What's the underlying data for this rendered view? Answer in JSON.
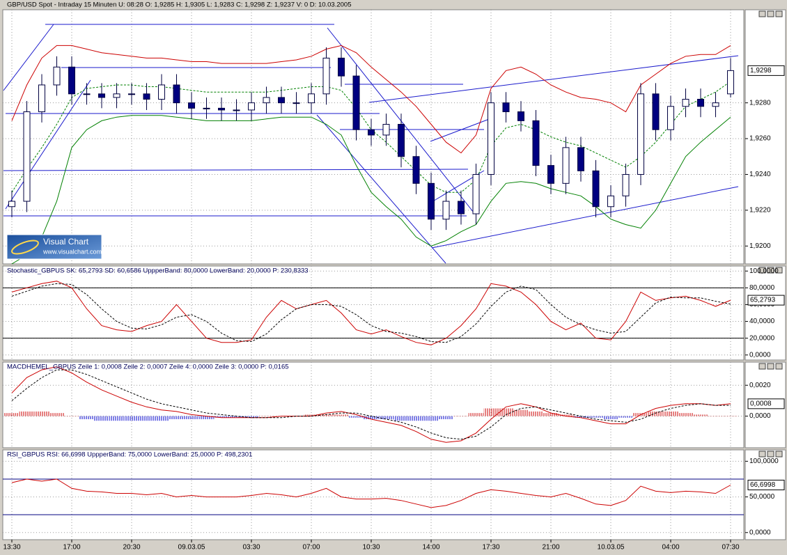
{
  "logo": {
    "title": "Visual Chart",
    "url": "www.visualchart.com"
  },
  "chart_data": [
    {
      "type": "candlestick",
      "title": "GBP/USD Spot - Intraday 15 Minuten  U: 08:28  O: 1,9285  H: 1,9305  L: 1,9283  C: 1,9298  Z: 1,9237  V: 0  D: 10.03.2005",
      "ylim": [
        1.919,
        1.9332
      ],
      "grid": true,
      "yticks": [
        {
          "value": 1.92,
          "label": "1,9200"
        },
        {
          "value": 1.922,
          "label": "1,9220"
        },
        {
          "value": 1.924,
          "label": "1,9240"
        },
        {
          "value": 1.926,
          "label": "1,9260"
        },
        {
          "value": 1.928,
          "label": "1,9280"
        }
      ],
      "current": {
        "value": 1.9298,
        "label": "1,9298"
      },
      "up_color": "#ffffff",
      "down_color": "#000080",
      "open": [
        1.9222,
        1.9225,
        1.9275,
        1.929,
        1.93,
        1.9285,
        1.9285,
        1.9283,
        1.9285,
        1.9285,
        1.9282,
        1.929,
        1.928,
        1.9277,
        1.9277,
        1.9276,
        1.9276,
        1.928,
        1.9283,
        1.928,
        1.928,
        1.9285,
        1.9305,
        1.9295,
        1.9265,
        1.9262,
        1.9268,
        1.925,
        1.9235,
        1.9215,
        1.9225,
        1.9218,
        1.924,
        1.928,
        1.9275,
        1.927,
        1.9245,
        1.9235,
        1.9255,
        1.9242,
        1.9222,
        1.9228,
        1.924,
        1.9285,
        1.9265,
        1.9278,
        1.9282,
        1.9278,
        1.9285
      ],
      "high": [
        1.9231,
        1.9281,
        1.9296,
        1.9306,
        1.9306,
        1.9291,
        1.9291,
        1.9291,
        1.9291,
        1.9291,
        1.9296,
        1.9296,
        1.9286,
        1.9283,
        1.9283,
        1.9282,
        1.9286,
        1.9289,
        1.9289,
        1.9286,
        1.9291,
        1.9311,
        1.9311,
        1.9301,
        1.9271,
        1.9274,
        1.9274,
        1.9256,
        1.9241,
        1.9231,
        1.9231,
        1.9246,
        1.9286,
        1.9286,
        1.9281,
        1.9276,
        1.9251,
        1.9261,
        1.9261,
        1.9248,
        1.9234,
        1.9246,
        1.9291,
        1.9291,
        1.9284,
        1.9288,
        1.9288,
        1.9286,
        1.9305
      ],
      "low": [
        1.9216,
        1.9219,
        1.9269,
        1.9284,
        1.9279,
        1.9279,
        1.9277,
        1.9277,
        1.9279,
        1.9276,
        1.9276,
        1.9274,
        1.9271,
        1.9271,
        1.927,
        1.927,
        1.927,
        1.9274,
        1.9274,
        1.9274,
        1.9274,
        1.9279,
        1.9289,
        1.9259,
        1.9256,
        1.9256,
        1.9244,
        1.9229,
        1.9209,
        1.9209,
        1.9212,
        1.9212,
        1.9234,
        1.9269,
        1.9264,
        1.9239,
        1.9229,
        1.9229,
        1.9236,
        1.9216,
        1.9216,
        1.9222,
        1.9234,
        1.9259,
        1.9259,
        1.9272,
        1.9272,
        1.9272,
        1.9283
      ],
      "close": [
        1.9225,
        1.9275,
        1.929,
        1.93,
        1.9285,
        1.9285,
        1.9283,
        1.9285,
        1.9285,
        1.9282,
        1.929,
        1.928,
        1.9277,
        1.9277,
        1.9276,
        1.9276,
        1.928,
        1.9283,
        1.928,
        1.928,
        1.9285,
        1.9305,
        1.9295,
        1.9265,
        1.9262,
        1.9268,
        1.925,
        1.9235,
        1.9215,
        1.9225,
        1.9218,
        1.924,
        1.928,
        1.9275,
        1.927,
        1.9245,
        1.9235,
        1.9255,
        1.9242,
        1.9222,
        1.9228,
        1.924,
        1.9285,
        1.9265,
        1.9278,
        1.9282,
        1.9278,
        1.928,
        1.9298
      ],
      "series": [
        {
          "color": "#cc0000",
          "values": [
            1.927,
            1.929,
            1.9305,
            1.9312,
            1.9312,
            1.931,
            1.9308,
            1.9307,
            1.9306,
            1.9305,
            1.9305,
            1.9304,
            1.9303,
            1.9303,
            1.9302,
            1.9302,
            1.9302,
            1.9302,
            1.9303,
            1.9304,
            1.9306,
            1.931,
            1.9312,
            1.9308,
            1.93,
            1.9293,
            1.9286,
            1.9278,
            1.9268,
            1.9258,
            1.9252,
            1.9262,
            1.9288,
            1.9298,
            1.93,
            1.9296,
            1.929,
            1.9286,
            1.9283,
            1.9282,
            1.928,
            1.9275,
            1.929,
            1.9296,
            1.9302,
            1.9306,
            1.9307,
            1.9307,
            1.9312
          ]
        },
        {
          "color": "#008000",
          "dash": true,
          "values": [
            1.923,
            1.9243,
            1.9255,
            1.9268,
            1.9283,
            1.9288,
            1.9289,
            1.929,
            1.929,
            1.9289,
            1.9289,
            1.9288,
            1.9287,
            1.9286,
            1.9286,
            1.9286,
            1.9286,
            1.9286,
            1.9287,
            1.9288,
            1.9289,
            1.9289,
            1.9287,
            1.9277,
            1.9265,
            1.9258,
            1.925,
            1.9242,
            1.9234,
            1.923,
            1.923,
            1.9237,
            1.9256,
            1.9266,
            1.9268,
            1.9265,
            1.9261,
            1.9258,
            1.9256,
            1.9252,
            1.9248,
            1.9244,
            1.925,
            1.9258,
            1.9268,
            1.9278,
            1.9282,
            1.9286,
            1.9292
          ]
        },
        {
          "color": "#008000",
          "values": [
            1.919,
            1.9195,
            1.9205,
            1.9225,
            1.9255,
            1.9265,
            1.927,
            1.9272,
            1.9273,
            1.9273,
            1.9273,
            1.9272,
            1.9271,
            1.927,
            1.927,
            1.927,
            1.927,
            1.9271,
            1.9272,
            1.9272,
            1.9272,
            1.9268,
            1.9262,
            1.9245,
            1.923,
            1.9222,
            1.9215,
            1.9205,
            1.92,
            1.9203,
            1.9208,
            1.9212,
            1.9225,
            1.9235,
            1.9236,
            1.9235,
            1.9232,
            1.923,
            1.9228,
            1.9222,
            1.9215,
            1.9212,
            1.921,
            1.922,
            1.9235,
            1.925,
            1.9258,
            1.9265,
            1.9272
          ]
        }
      ]
    },
    {
      "type": "line",
      "title": "Stochastic_GBPUS  SK: 65,2793  SD: 60,6586  UppperBand: 80,0000  LowerBand: 20,0000  P: 230,8333",
      "ylim": [
        -6,
        106
      ],
      "grid": true,
      "yticks": [
        {
          "value": 0,
          "label": "0,0000"
        },
        {
          "value": 20,
          "label": "20,0000"
        },
        {
          "value": 40,
          "label": "40,0000"
        },
        {
          "value": 60,
          "label": "60,0000"
        },
        {
          "value": 80,
          "label": "80,0000"
        },
        {
          "value": 100,
          "label": "100,0000"
        }
      ],
      "bands": [
        80,
        20
      ],
      "band_color": "#000000",
      "current": {
        "value": 65.2793,
        "label": "65,2793"
      },
      "series": [
        {
          "color": "#cc0000",
          "values": [
            75,
            80,
            85,
            88,
            80,
            55,
            35,
            30,
            28,
            35,
            40,
            60,
            40,
            20,
            15,
            15,
            18,
            45,
            65,
            55,
            60,
            65,
            50,
            30,
            25,
            30,
            22,
            15,
            12,
            20,
            35,
            55,
            85,
            82,
            75,
            60,
            40,
            30,
            38,
            20,
            18,
            40,
            75,
            65,
            68,
            70,
            65,
            58,
            65.2793
          ]
        },
        {
          "color": "#000000",
          "dash": true,
          "values": [
            70,
            76,
            82,
            85,
            84,
            72,
            55,
            40,
            32,
            31,
            36,
            45,
            48,
            40,
            26,
            17,
            16,
            25,
            42,
            55,
            60,
            60,
            58,
            48,
            35,
            28,
            26,
            22,
            16,
            15,
            22,
            37,
            58,
            75,
            82,
            78,
            60,
            45,
            36,
            30,
            26,
            28,
            45,
            62,
            69,
            68,
            68,
            64,
            60.6586
          ]
        }
      ]
    },
    {
      "type": "line",
      "title": "MACDHEMEL_GBPUS  Zeile 1: 0,0008  Zeile 2: 0,0007  Zeile 4: 0,0000  Zeile 3: 0,0000  P: 0,0165",
      "ylim": [
        -0.00205,
        0.0035
      ],
      "grid": true,
      "yticks": [
        {
          "value": 0,
          "label": "0,0000"
        },
        {
          "value": 0.002,
          "label": "0,0020"
        }
      ],
      "current": {
        "value": 0.0008,
        "label": "0,0008"
      },
      "series": [
        {
          "color": "#cc0000",
          "negative_color": "#0000cc",
          "style": "histogram",
          "values": [
            0.0002,
            0.0003,
            0.0003,
            0.0002,
            0,
            -0.0002,
            -0.0003,
            -0.0003,
            -0.0003,
            -0.0003,
            -0.0003,
            -0.0002,
            -0.0002,
            -0.0002,
            -0.0001,
            -0.0001,
            -0.0001,
            0,
            0,
            0,
            0.0001,
            0.0001,
            0.0001,
            -0.0001,
            -0.0002,
            -0.0002,
            -0.0003,
            -0.0003,
            -0.0003,
            -0.0002,
            0,
            0.0002,
            0.0005,
            0.0005,
            0.0004,
            0.0003,
            0.0002,
            0.0001,
            -0.0001,
            -0.0001,
            -0.0002,
            -0.0001,
            0.0002,
            0.0003,
            0.0003,
            0.0002,
            0.0001,
            0,
            0
          ]
        },
        {
          "color": "#cc0000",
          "values": [
            0.0015,
            0.0025,
            0.003,
            0.0032,
            0.0028,
            0.0022,
            0.0017,
            0.0013,
            0.0009,
            0.0006,
            0.0004,
            0.0003,
            0.0001,
            0,
            -0.0001,
            -0.0001,
            -0.0001,
            -0.0001,
            0,
            0,
            0,
            0.0002,
            0.0003,
            0.0001,
            -0.0002,
            -0.0004,
            -0.0006,
            -0.001,
            -0.0015,
            -0.0017,
            -0.0016,
            -0.0011,
            -0.0002,
            0.0006,
            0.0008,
            0.0006,
            0.0002,
            0,
            -0.0001,
            -0.0003,
            -0.0005,
            -0.0005,
            0.0001,
            0.0005,
            0.0007,
            0.0008,
            0.0008,
            0.0007,
            0.0008
          ]
        },
        {
          "color": "#000000",
          "dash": true,
          "values": [
            0.001,
            0.0018,
            0.0025,
            0.003,
            0.003,
            0.0027,
            0.0023,
            0.0019,
            0.0015,
            0.0011,
            0.0008,
            0.0006,
            0.0004,
            0.0002,
            0.0001,
            0,
            -0.0001,
            -0.0001,
            -0.0001,
            0,
            0,
            0.0001,
            0.0002,
            0.0002,
            0,
            -0.0002,
            -0.0004,
            -0.0007,
            -0.0011,
            -0.0014,
            -0.0015,
            -0.0013,
            -0.0007,
            0.0001,
            0.0005,
            0.0006,
            0.0004,
            0.0002,
            0,
            -0.0002,
            -0.0003,
            -0.0004,
            -0.0002,
            0.0002,
            0.0005,
            0.0007,
            0.0008,
            0.0007,
            0.0007
          ]
        }
      ]
    },
    {
      "type": "line",
      "title": "RSI_GBPUS  RSI: 66,6998  UppperBand: 75,0000  LowerBand: 25,0000  P: 498,2301",
      "ylim": [
        -10,
        116
      ],
      "grid": true,
      "yticks": [
        {
          "value": 0,
          "label": "0,0000"
        },
        {
          "value": 50,
          "label": "50,0000"
        },
        {
          "value": 100,
          "label": "100,0000"
        }
      ],
      "bands": [
        75,
        25
      ],
      "band_color": "#000080",
      "current": {
        "value": 66.6998,
        "label": "66,6998"
      },
      "categories": [
        "13:30",
        null,
        null,
        null,
        "17:00",
        null,
        null,
        null,
        "20:30",
        null,
        null,
        null,
        "09.03.05",
        null,
        null,
        null,
        "03:30",
        null,
        null,
        null,
        "07:00",
        null,
        null,
        null,
        "10:30",
        null,
        null,
        null,
        "14:00",
        null,
        null,
        null,
        "17:30",
        null,
        null,
        null,
        "21:00",
        null,
        null,
        null,
        "10.03.05",
        null,
        null,
        null,
        "04:00",
        null,
        null,
        null,
        "07:30"
      ],
      "series": [
        {
          "color": "#cc0000",
          "values": [
            70,
            75,
            72,
            75,
            62,
            58,
            57,
            55,
            55,
            53,
            55,
            50,
            52,
            50,
            50,
            50,
            52,
            55,
            53,
            50,
            55,
            62,
            50,
            47,
            47,
            48,
            45,
            40,
            35,
            38,
            45,
            55,
            60,
            58,
            55,
            52,
            50,
            55,
            48,
            40,
            38,
            45,
            65,
            58,
            56,
            58,
            57,
            55,
            66.6998
          ]
        }
      ]
    }
  ]
}
